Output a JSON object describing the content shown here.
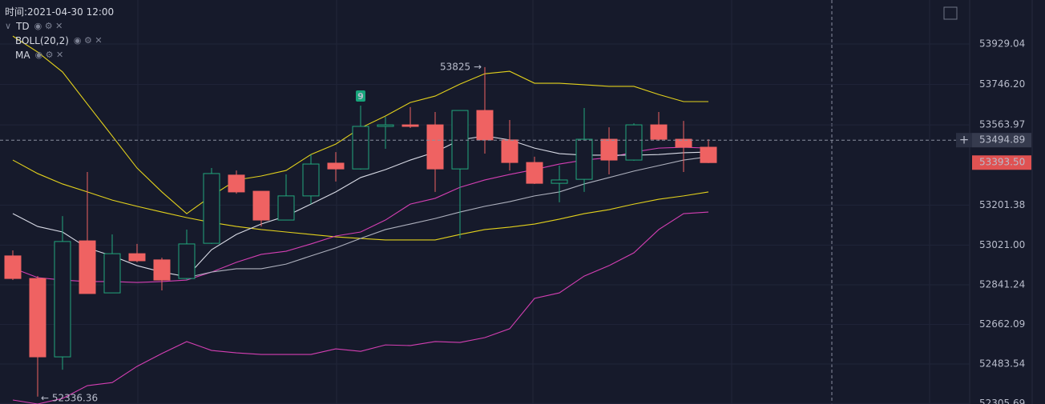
{
  "header": {
    "time": "时间:2021-04-30 12:00",
    "indicators": [
      "TD",
      "BOLL(20,2)",
      "MA"
    ]
  },
  "chart_data": {
    "type": "candlestick",
    "categories": [
      null,
      null,
      null,
      null,
      null,
      null,
      null,
      null,
      null,
      null,
      null,
      null,
      null,
      null,
      null,
      null,
      null,
      null,
      null,
      null,
      null,
      null,
      null,
      null,
      null,
      null,
      null,
      null,
      null
    ],
    "open": [
      52972,
      52870,
      52516,
      53040,
      52805,
      52982,
      52954,
      52870,
      53029,
      53337,
      53264,
      53134,
      53243,
      53391,
      53365,
      53557,
      53564,
      53564,
      53365,
      53629,
      53496,
      53394,
      53300,
      53318,
      53499,
      53405,
      53564,
      53499,
      53463
    ],
    "high": [
      52997,
      52881,
      53152,
      53351,
      53069,
      53026,
      52964,
      53091,
      53369,
      53358,
      53264,
      53340,
      53430,
      53441,
      53651,
      53600,
      53644,
      53622,
      53629,
      53825,
      53586,
      53420,
      53380,
      53640,
      53553,
      53571,
      53622,
      53582,
      53499
    ],
    "low": [
      52863,
      52336.36,
      52458,
      52802,
      52805,
      52943,
      52816,
      52863,
      53026,
      53253,
      53105,
      53134,
      53206,
      53308,
      53362,
      53456,
      53550,
      53261,
      53051,
      53434,
      53358,
      53297,
      53214,
      53261,
      53340,
      53402,
      53492,
      53351,
      53391
    ],
    "close": [
      52870,
      52516,
      53037,
      52802,
      52982,
      52950,
      52863,
      53026,
      53344,
      53261,
      53134,
      53243,
      53387,
      53365,
      53557,
      53564,
      53557,
      53365,
      53629,
      53496,
      53394,
      53300,
      53315,
      53499,
      53405,
      53564,
      53499,
      53463,
      53393.5
    ],
    "up_color": "#22a67c",
    "down_color": "#ef6262",
    "series": [
      {
        "color": "#e3d11c",
        "values": [
          53965,
          53893,
          53803,
          53658,
          53514,
          53369,
          53261,
          53163,
          53243,
          53315,
          53333,
          53358,
          53430,
          53477,
          53550,
          53604,
          53665,
          53694,
          53748,
          53795,
          53806,
          53752,
          53752,
          53745,
          53738,
          53738,
          53701,
          53669,
          53669
        ]
      },
      {
        "color": "#e3d11c",
        "values": [
          53405,
          53344,
          53297,
          53261,
          53224,
          53196,
          53170,
          53145,
          53123,
          53105,
          53091,
          53080,
          53069,
          53058,
          53051,
          53044,
          53044,
          53044,
          53069,
          53091,
          53102,
          53116,
          53138,
          53163,
          53181,
          53206,
          53228,
          53243,
          53261
        ]
      },
      {
        "color": "#d43fb3",
        "values": [
          52321,
          52303,
          52328,
          52386,
          52400,
          52473,
          52531,
          52585,
          52545,
          52534,
          52527,
          52527,
          52527,
          52552,
          52541,
          52570,
          52567,
          52585,
          52581,
          52603,
          52643,
          52780,
          52805,
          52881,
          52928,
          52986,
          53091,
          53163,
          53170
        ]
      },
      {
        "color": "#d43fb3",
        "values": [
          52917,
          52874,
          52863,
          52856,
          52856,
          52852,
          52856,
          52863,
          52899,
          52943,
          52979,
          52993,
          53026,
          53062,
          53080,
          53134,
          53206,
          53232,
          53282,
          53315,
          53340,
          53362,
          53387,
          53405,
          53416,
          53441,
          53459,
          53463,
          53459
        ]
      },
      {
        "color": "#d9dbe6",
        "values": [
          53163,
          53105,
          53080,
          53008,
          52972,
          52928,
          52899,
          52878,
          53000,
          53069,
          53116,
          53152,
          53206,
          53261,
          53326,
          53362,
          53405,
          53441,
          53496,
          53514,
          53496,
          53459,
          53434,
          53427,
          53427,
          53427,
          53430,
          53438,
          53441
        ]
      },
      {
        "color": "#aeb1be",
        "values": [
          null,
          null,
          null,
          null,
          null,
          null,
          null,
          52874,
          52899,
          52914,
          52914,
          52935,
          52972,
          53008,
          53051,
          53091,
          53116,
          53141,
          53170,
          53196,
          53217,
          53243,
          53261,
          53297,
          53326,
          53355,
          53380,
          53405,
          53420
        ]
      }
    ],
    "ylim": [
      52303,
      54128
    ],
    "yticks": [
      53929.04,
      {
        "value": 53746.2,
        "label": "53746.20"
      },
      53563.97,
      53201.38,
      {
        "value": 53021,
        "label": "53021.00"
      },
      52841.24,
      52662.09,
      52483.54,
      52305.69
    ],
    "grid": true,
    "high_label": "53825 →",
    "low_label": "← 52336.36",
    "td_label": {
      "text": "9",
      "index": 14
    },
    "crosshair_price": {
      "value": 53494.89,
      "label": "53494.89",
      "symbol": "+"
    },
    "last_price": {
      "value": 53393.5,
      "label": "53393.50"
    }
  }
}
